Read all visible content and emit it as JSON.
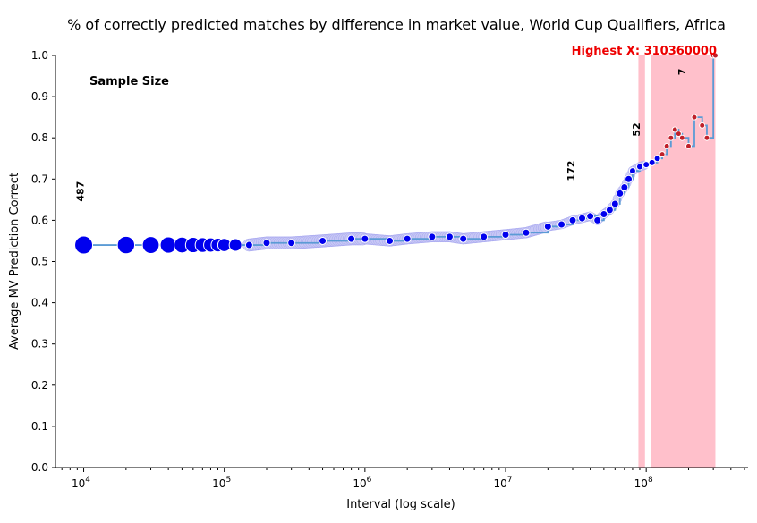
{
  "chart_data": {
    "type": "scatter",
    "title": "% of correctly predicted matches by difference in market value, World Cup Qualifiers, Africa",
    "xlabel": "Interval (log scale)",
    "ylabel": "Average MV Prediction Correct",
    "x_scale": "log",
    "xlim": [
      6300,
      530000000
    ],
    "ylim": [
      0.0,
      1.0
    ],
    "x_tick_labels": [
      {
        "value": 10000,
        "base": "10",
        "exp": "4"
      },
      {
        "value": 100000,
        "base": "10",
        "exp": "5"
      },
      {
        "value": 1000000,
        "base": "10",
        "exp": "6"
      },
      {
        "value": 10000000,
        "base": "10",
        "exp": "7"
      },
      {
        "value": 100000000,
        "base": "10",
        "exp": "8"
      }
    ],
    "y_tick_labels": [
      "0.0",
      "0.1",
      "0.2",
      "0.3",
      "0.4",
      "0.5",
      "0.6",
      "0.7",
      "0.8",
      "0.9",
      "1.0"
    ],
    "grid": false,
    "annotations": {
      "sample_size_title": "Sample Size",
      "highest_x_label": "Highest X: 310360000",
      "sample_counts": [
        {
          "label": "487",
          "x": 10000,
          "y": 0.67
        },
        {
          "label": "172",
          "x": 31000000,
          "y": 0.72
        },
        {
          "label": "52",
          "x": 90000000,
          "y": 0.82
        },
        {
          "label": "7",
          "x": 190000000,
          "y": 0.96
        }
      ]
    },
    "shaded_ranges": [
      {
        "from": 88000000,
        "to": 98000000
      },
      {
        "from": 108000000,
        "to": 310360000
      }
    ],
    "colors": {
      "line": "#5b9bd5",
      "early_points": "#0000ee",
      "halo": "#c8c8f5",
      "late_points": "#c0202a",
      "shade": "#ffc0cb",
      "highest_label": "#ee0000"
    },
    "series": [
      {
        "x": [
          10000,
          20000,
          30000,
          40000,
          50000,
          60000,
          70000,
          80000,
          90000,
          100000,
          120000,
          150000,
          200000,
          300000,
          500000,
          800000,
          1000000,
          1500000,
          2000000,
          3000000,
          4000000,
          5000000,
          7000000,
          10000000,
          14000000,
          20000000,
          25000000,
          30000000,
          35000000,
          40000000,
          45000000,
          50000000,
          55000000,
          60000000,
          65000000,
          70000000,
          75000000,
          80000000,
          90000000,
          100000000,
          110000000,
          120000000,
          130000000,
          140000000,
          150000000,
          160000000,
          170000000,
          180000000,
          200000000,
          220000000,
          250000000,
          270000000,
          300000000,
          310360000
        ],
        "y": [
          0.54,
          0.54,
          0.54,
          0.54,
          0.54,
          0.54,
          0.54,
          0.54,
          0.54,
          0.54,
          0.54,
          0.54,
          0.545,
          0.545,
          0.55,
          0.555,
          0.555,
          0.55,
          0.555,
          0.56,
          0.56,
          0.555,
          0.56,
          0.565,
          0.57,
          0.585,
          0.59,
          0.6,
          0.605,
          0.61,
          0.6,
          0.615,
          0.625,
          0.64,
          0.665,
          0.68,
          0.7,
          0.72,
          0.73,
          0.735,
          0.74,
          0.75,
          0.76,
          0.78,
          0.8,
          0.82,
          0.81,
          0.8,
          0.78,
          0.85,
          0.83,
          0.8,
          1.0,
          1.0
        ]
      }
    ]
  }
}
